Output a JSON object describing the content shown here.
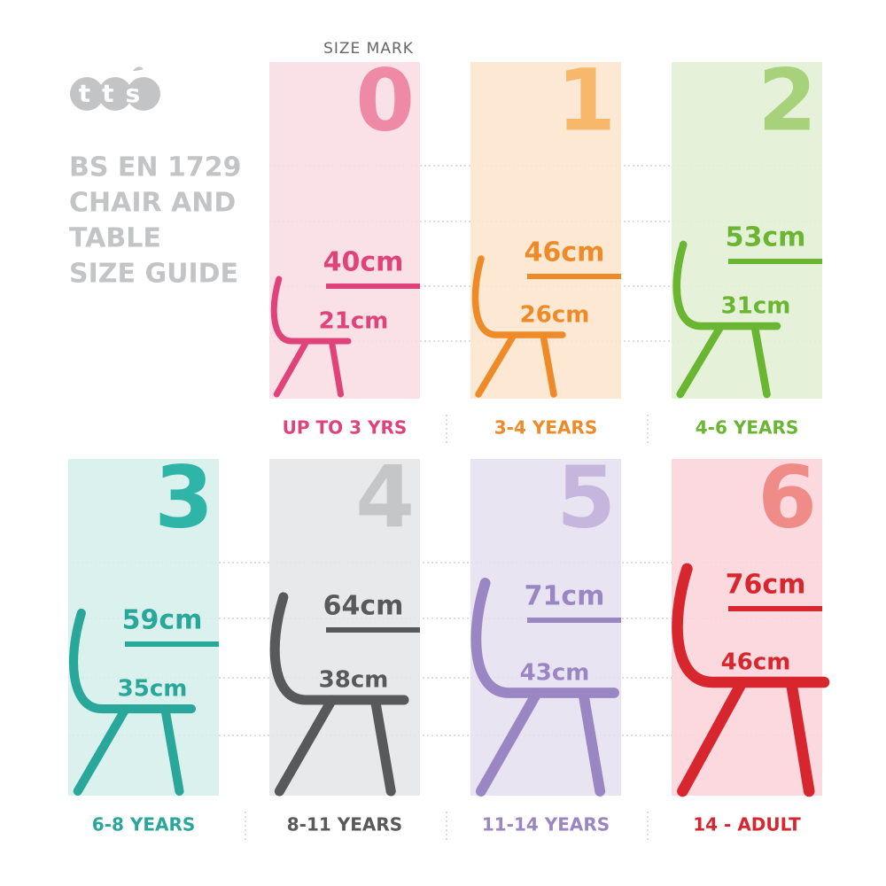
{
  "logo": "tts",
  "title": [
    "BS EN 1729",
    "CHAIR AND",
    "TABLE",
    "SIZE GUIDE"
  ],
  "size_mark_label": "SIZE MARK",
  "sizes": [
    {
      "mark": "0",
      "table_height": "40cm",
      "chair_height": "21cm",
      "age": "UP TO 3 YRS"
    },
    {
      "mark": "1",
      "table_height": "46cm",
      "chair_height": "26cm",
      "age": "3-4 YEARS"
    },
    {
      "mark": "2",
      "table_height": "53cm",
      "chair_height": "31cm",
      "age": "4-6 YEARS"
    },
    {
      "mark": "3",
      "table_height": "59cm",
      "chair_height": "35cm",
      "age": "6-8 YEARS"
    },
    {
      "mark": "4",
      "table_height": "64cm",
      "chair_height": "38cm",
      "age": "8-11 YEARS"
    },
    {
      "mark": "5",
      "table_height": "71cm",
      "chair_height": "43cm",
      "age": "11-14 YEARS"
    },
    {
      "mark": "6",
      "table_height": "76cm",
      "chair_height": "46cm",
      "age": "14 - ADULT"
    }
  ]
}
